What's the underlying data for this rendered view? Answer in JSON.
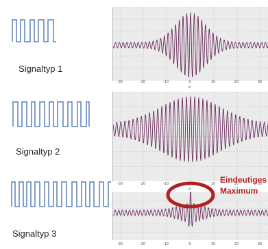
{
  "signals": [
    {
      "label": "Signaltyp 1"
    },
    {
      "label": "Signaltyp 2"
    },
    {
      "label": "Signaltyp 3"
    }
  ],
  "axis": {
    "ticks": [
      "-30",
      "-20",
      "-10",
      "0",
      "10",
      "20",
      "30"
    ],
    "unit": "µs"
  },
  "annotation": {
    "line1": "Eindeutiges",
    "line2": "Maximum"
  },
  "colors": {
    "waveform": "#6b2f5f",
    "signal_icon": "#5a80b8",
    "highlight": "#b22020",
    "panel_bg": "#ebebeb",
    "grid": "#c4c4c4"
  }
}
